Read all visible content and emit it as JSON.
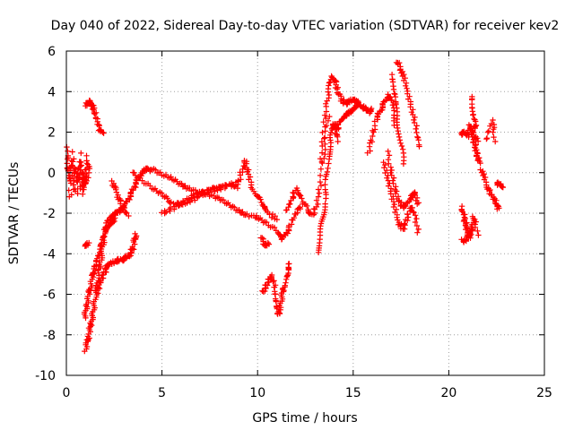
{
  "chart_data": {
    "type": "scatter",
    "title": "Day 040 of 2022, Sidereal Day-to-day VTEC variation (SDTVAR) for receiver kev2",
    "xlabel": "GPS time / hours",
    "ylabel": "SDTVAR / TECUs",
    "xlim": [
      0,
      25
    ],
    "ylim": [
      -10,
      6
    ],
    "xticks": [
      "0",
      "5",
      "10",
      "15",
      "20",
      "25"
    ],
    "yticks": [
      "-10",
      "-8",
      "-6",
      "-4",
      "-2",
      "0",
      "2",
      "4",
      "6"
    ],
    "grid": true,
    "marker": "+",
    "color": "#ff0000",
    "series": [
      {
        "name": "SDTVAR",
        "segments": [
          [
            [
              0.0,
              1.2
            ],
            [
              0.1,
              0.3
            ],
            [
              0.2,
              -0.5
            ],
            [
              0.3,
              0.6
            ],
            [
              0.4,
              -0.8
            ],
            [
              0.5,
              0.2
            ],
            [
              0.6,
              -0.4
            ],
            [
              0.7,
              0.5
            ],
            [
              0.8,
              -1.0
            ],
            [
              0.9,
              0.0
            ],
            [
              1.0,
              -0.6
            ],
            [
              1.1,
              0.8
            ],
            [
              1.2,
              -0.2
            ],
            [
              0.15,
              -1.2
            ],
            [
              0.35,
              1.0
            ],
            [
              0.55,
              -1.1
            ],
            [
              0.75,
              0.9
            ],
            [
              0.95,
              -0.9
            ],
            [
              1.05,
              0.4
            ]
          ],
          [
            [
              1.0,
              3.3
            ],
            [
              1.15,
              3.5
            ],
            [
              1.3,
              3.4
            ],
            [
              1.45,
              3.1
            ],
            [
              1.6,
              2.6
            ],
            [
              1.75,
              2.1
            ],
            [
              1.9,
              2.0
            ]
          ],
          [
            [
              1.0,
              -3.6
            ],
            [
              1.2,
              -3.5
            ]
          ],
          [
            [
              1.0,
              -8.8
            ],
            [
              1.1,
              -8.3
            ],
            [
              1.2,
              -7.9
            ],
            [
              1.3,
              -7.4
            ],
            [
              1.4,
              -6.8
            ],
            [
              1.5,
              -6.2
            ],
            [
              1.6,
              -5.5
            ],
            [
              1.7,
              -4.8
            ],
            [
              1.8,
              -4.3
            ],
            [
              1.9,
              -3.6
            ],
            [
              2.0,
              -3.0
            ],
            [
              2.1,
              -2.6
            ],
            [
              2.2,
              -2.3
            ],
            [
              2.4,
              -2.1
            ],
            [
              2.6,
              -2.0
            ],
            [
              2.8,
              -1.9
            ],
            [
              3.0,
              -1.7
            ],
            [
              3.2,
              -1.4
            ],
            [
              3.4,
              -1.0
            ],
            [
              3.6,
              -0.6
            ],
            [
              3.8,
              -0.2
            ],
            [
              4.0,
              0.1
            ],
            [
              4.2,
              0.2
            ],
            [
              4.4,
              0.1
            ]
          ],
          [
            [
              0.95,
              -7.2
            ],
            [
              1.05,
              -6.6
            ],
            [
              1.15,
              -6.1
            ],
            [
              1.25,
              -5.7
            ],
            [
              1.35,
              -5.2
            ],
            [
              1.45,
              -4.8
            ],
            [
              1.55,
              -4.5
            ],
            [
              1.7,
              -4.1
            ],
            [
              1.85,
              -3.5
            ],
            [
              2.0,
              -3.0
            ],
            [
              2.2,
              -2.7
            ],
            [
              2.4,
              -2.5
            ],
            [
              2.6,
              -2.3
            ]
          ],
          [
            [
              1.6,
              -5.9
            ],
            [
              1.7,
              -5.6
            ],
            [
              1.8,
              -5.3
            ],
            [
              1.95,
              -5.0
            ],
            [
              2.1,
              -4.7
            ],
            [
              2.3,
              -4.5
            ],
            [
              2.5,
              -4.4
            ],
            [
              2.7,
              -4.3
            ],
            [
              2.9,
              -4.3
            ],
            [
              3.1,
              -4.2
            ],
            [
              3.3,
              -4.1
            ],
            [
              3.45,
              -3.8
            ],
            [
              3.55,
              -3.4
            ],
            [
              3.65,
              -3.0
            ]
          ],
          [
            [
              2.4,
              -0.4
            ],
            [
              2.6,
              -0.9
            ],
            [
              2.8,
              -1.4
            ],
            [
              3.0,
              -1.8
            ],
            [
              3.2,
              -2.1
            ]
          ],
          [
            [
              4.5,
              0.2
            ],
            [
              5.0,
              -0.1
            ],
            [
              5.5,
              -0.3
            ],
            [
              6.0,
              -0.6
            ],
            [
              6.5,
              -0.8
            ],
            [
              7.0,
              -1.0
            ],
            [
              7.5,
              -0.9
            ],
            [
              8.0,
              -0.8
            ],
            [
              8.5,
              -0.6
            ],
            [
              9.0,
              -0.5
            ],
            [
              9.2,
              0.2
            ],
            [
              9.35,
              0.6
            ],
            [
              9.5,
              0.0
            ],
            [
              9.7,
              -0.8
            ],
            [
              10.0,
              -1.2
            ],
            [
              10.3,
              -1.7
            ],
            [
              10.6,
              -2.0
            ],
            [
              11.0,
              -2.3
            ]
          ],
          [
            [
              3.5,
              0.0
            ],
            [
              4.0,
              -0.4
            ],
            [
              4.5,
              -0.8
            ],
            [
              5.0,
              -1.1
            ],
            [
              5.5,
              -1.5
            ],
            [
              6.0,
              -1.6
            ],
            [
              6.5,
              -1.4
            ],
            [
              7.0,
              -1.1
            ],
            [
              7.5,
              -0.8
            ],
            [
              8.0,
              -0.7
            ],
            [
              8.5,
              -0.6
            ],
            [
              9.0,
              -0.7
            ]
          ],
          [
            [
              5.0,
              -2.0
            ],
            [
              5.5,
              -1.8
            ],
            [
              6.0,
              -1.5
            ],
            [
              6.5,
              -1.2
            ],
            [
              7.0,
              -1.0
            ],
            [
              7.5,
              -1.1
            ],
            [
              8.0,
              -1.3
            ],
            [
              8.5,
              -1.6
            ],
            [
              9.0,
              -1.9
            ],
            [
              9.5,
              -2.1
            ],
            [
              10.0,
              -2.2
            ],
            [
              10.5,
              -2.5
            ],
            [
              11.0,
              -2.9
            ],
            [
              11.3,
              -3.3
            ],
            [
              11.5,
              -3.0
            ],
            [
              11.7,
              -2.6
            ],
            [
              12.0,
              -2.0
            ],
            [
              12.3,
              -1.6
            ]
          ],
          [
            [
              10.2,
              -3.2
            ],
            [
              10.4,
              -3.6
            ],
            [
              10.6,
              -3.5
            ]
          ],
          [
            [
              10.3,
              -5.9
            ],
            [
              10.45,
              -5.6
            ],
            [
              10.6,
              -5.3
            ],
            [
              10.75,
              -5.1
            ],
            [
              10.9,
              -5.6
            ],
            [
              11.0,
              -6.3
            ],
            [
              11.1,
              -7.0
            ],
            [
              11.2,
              -6.6
            ],
            [
              11.3,
              -6.0
            ],
            [
              11.4,
              -5.5
            ],
            [
              11.55,
              -4.9
            ],
            [
              11.7,
              -4.5
            ]
          ],
          [
            [
              11.5,
              -1.9
            ],
            [
              11.8,
              -1.3
            ],
            [
              12.0,
              -0.8
            ],
            [
              12.3,
              -1.2
            ],
            [
              12.6,
              -1.8
            ],
            [
              12.9,
              -2.1
            ],
            [
              13.1,
              -1.6
            ],
            [
              13.3,
              -0.4
            ],
            [
              13.5,
              1.2
            ],
            [
              13.7,
              2.8
            ]
          ],
          [
            [
              13.2,
              -4.0
            ],
            [
              13.3,
              -3.1
            ],
            [
              13.4,
              -2.3
            ],
            [
              13.5,
              -1.5
            ],
            [
              13.6,
              -0.4
            ],
            [
              13.7,
              0.6
            ],
            [
              13.8,
              1.5
            ],
            [
              13.9,
              2.2
            ],
            [
              14.0,
              2.4
            ],
            [
              14.1,
              2.3
            ],
            [
              14.2,
              1.6
            ]
          ],
          [
            [
              13.3,
              0.5
            ],
            [
              13.45,
              2.0
            ],
            [
              13.6,
              3.3
            ],
            [
              13.75,
              4.2
            ],
            [
              13.9,
              4.7
            ],
            [
              14.05,
              4.5
            ],
            [
              14.2,
              4.0
            ],
            [
              14.4,
              3.6
            ],
            [
              14.6,
              3.4
            ],
            [
              14.8,
              3.5
            ],
            [
              15.0,
              3.6
            ],
            [
              15.2,
              3.5
            ],
            [
              15.4,
              3.3
            ],
            [
              15.6,
              3.2
            ],
            [
              15.8,
              3.0
            ],
            [
              16.0,
              3.1
            ]
          ],
          [
            [
              14.1,
              2.0
            ],
            [
              14.3,
              2.5
            ],
            [
              14.5,
              2.8
            ],
            [
              14.7,
              2.9
            ],
            [
              14.9,
              3.0
            ],
            [
              15.1,
              3.2
            ],
            [
              15.3,
              3.4
            ]
          ],
          [
            [
              15.8,
              1.0
            ],
            [
              16.0,
              1.8
            ],
            [
              16.2,
              2.6
            ],
            [
              16.4,
              3.0
            ],
            [
              16.6,
              3.4
            ],
            [
              16.8,
              3.8
            ],
            [
              17.0,
              3.6
            ],
            [
              17.1,
              3.0
            ],
            [
              17.2,
              2.4
            ]
          ],
          [
            [
              16.6,
              0.5
            ],
            [
              16.8,
              -0.2
            ],
            [
              17.0,
              -1.0
            ],
            [
              17.2,
              -1.8
            ],
            [
              17.4,
              -2.5
            ],
            [
              17.6,
              -2.8
            ],
            [
              17.8,
              -2.3
            ],
            [
              18.0,
              -1.7
            ],
            [
              18.2,
              -2.0
            ],
            [
              18.4,
              -2.9
            ]
          ],
          [
            [
              17.3,
              5.5
            ],
            [
              17.5,
              5.1
            ],
            [
              17.7,
              4.5
            ],
            [
              17.9,
              3.8
            ],
            [
              18.1,
              3.0
            ],
            [
              18.3,
              2.1
            ],
            [
              18.4,
              1.3
            ]
          ],
          [
            [
              16.8,
              1.0
            ],
            [
              17.0,
              0.0
            ],
            [
              17.2,
              -0.9
            ],
            [
              17.4,
              -1.4
            ],
            [
              17.6,
              -1.7
            ],
            [
              17.8,
              -1.6
            ],
            [
              18.0,
              -1.2
            ],
            [
              18.2,
              -1.0
            ],
            [
              18.4,
              -1.5
            ]
          ],
          [
            [
              17.0,
              4.8
            ],
            [
              17.1,
              4.1
            ],
            [
              17.2,
              3.3
            ],
            [
              17.35,
              2.4
            ],
            [
              17.5,
              1.4
            ],
            [
              17.65,
              0.5
            ]
          ],
          [
            [
              20.6,
              1.9
            ],
            [
              20.8,
              2.0
            ],
            [
              21.0,
              1.8
            ],
            [
              21.1,
              2.3
            ],
            [
              21.2,
              2.0
            ],
            [
              21.3,
              1.6
            ],
            [
              21.4,
              1.2
            ],
            [
              21.5,
              0.8
            ],
            [
              21.6,
              0.5
            ]
          ],
          [
            [
              21.2,
              3.8
            ],
            [
              21.3,
              3.0
            ],
            [
              21.4,
              2.4
            ],
            [
              21.3,
              2.0
            ],
            [
              21.5,
              1.5
            ]
          ],
          [
            [
              20.7,
              -1.7
            ],
            [
              20.8,
              -2.2
            ],
            [
              20.9,
              -2.6
            ],
            [
              21.0,
              -3.0
            ],
            [
              21.1,
              -3.2
            ],
            [
              21.2,
              -2.7
            ],
            [
              21.3,
              -2.1
            ],
            [
              21.5,
              -3.1
            ]
          ],
          [
            [
              20.7,
              -3.3
            ],
            [
              20.9,
              -3.4
            ],
            [
              21.1,
              -3.0
            ]
          ],
          [
            [
              21.7,
              0.2
            ],
            [
              21.9,
              -0.4
            ],
            [
              22.1,
              -0.9
            ],
            [
              22.3,
              -1.2
            ],
            [
              22.5,
              -1.5
            ],
            [
              22.6,
              -1.8
            ]
          ],
          [
            [
              22.0,
              1.6
            ],
            [
              22.3,
              2.6
            ],
            [
              22.4,
              1.6
            ]
          ],
          [
            [
              22.5,
              -0.5
            ],
            [
              22.7,
              -0.6
            ],
            [
              22.8,
              -0.7
            ]
          ]
        ]
      }
    ]
  }
}
